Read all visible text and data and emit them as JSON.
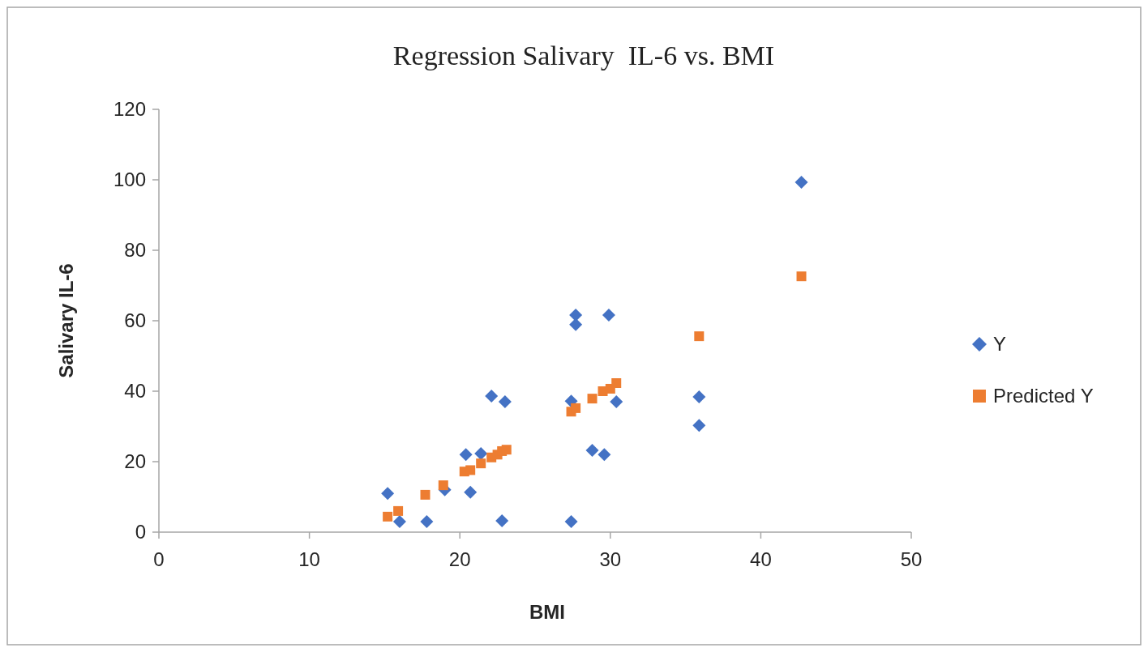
{
  "chart_data": {
    "type": "scatter",
    "title": "Regression Salivary  IL-6 vs. BMI",
    "xlabel": "BMI",
    "ylabel": "Salivary IL-6",
    "xlim": [
      0,
      50
    ],
    "xticks": [
      0,
      10,
      20,
      30,
      40,
      50
    ],
    "ylim": [
      0,
      120
    ],
    "yticks": [
      0,
      20,
      40,
      60,
      80,
      100,
      120
    ],
    "grid": false,
    "legend": "right",
    "series": [
      {
        "name": "Y",
        "color": "#4472c4",
        "marker": "diamond",
        "x": [
          15.2,
          16.0,
          17.8,
          19.0,
          20.4,
          20.7,
          21.4,
          22.1,
          23.0,
          22.8,
          27.4,
          27.4,
          27.7,
          27.7,
          29.9,
          30.4,
          28.8,
          29.6,
          35.9,
          35.9,
          42.7
        ],
        "values": [
          11,
          3,
          3,
          12,
          22,
          11.3,
          22.3,
          38.6,
          37,
          3.2,
          37.2,
          3,
          61.6,
          58.9,
          61.6,
          37,
          23.2,
          22,
          38.4,
          30.3,
          99.3
        ]
      },
      {
        "name": "Predicted Y",
        "color": "#ed7d31",
        "marker": "square",
        "x": [
          15.2,
          15.9,
          17.7,
          18.9,
          20.3,
          20.7,
          21.4,
          22.1,
          22.5,
          22.8,
          23.1,
          27.4,
          27.7,
          28.8,
          29.5,
          30.0,
          30.4,
          35.9,
          42.7
        ],
        "values": [
          4.4,
          6,
          10.6,
          13.3,
          17.2,
          17.6,
          19.5,
          21.2,
          22,
          23,
          23.4,
          34.2,
          35.2,
          37.9,
          40,
          40.7,
          42.3,
          55.6,
          72.6
        ]
      }
    ]
  }
}
